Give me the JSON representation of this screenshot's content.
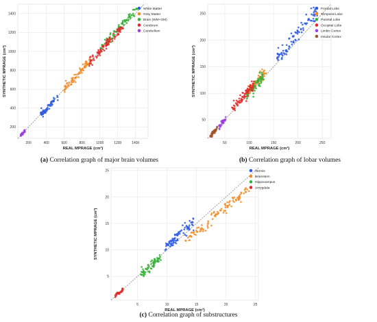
{
  "chart_data": [
    {
      "type": "scatter",
      "panel_letter": "(a)",
      "caption": "Correlation graph of major brain volumes",
      "xlabel": "REAL MPRAGE (cm³)",
      "ylabel": "SYNTHETIC MPRAGE (cm³)",
      "xlim": [
        80,
        1540
      ],
      "ylim": [
        80,
        1500
      ],
      "xticks": [
        "200",
        "400",
        "600",
        "800",
        "1000",
        "1200",
        "1400"
      ],
      "yticks": [
        "200",
        "400",
        "600",
        "800",
        "1000",
        "1200",
        "1400"
      ],
      "xtick_values": [
        200,
        400,
        600,
        800,
        1000,
        1200,
        1400
      ],
      "ytick_values": [
        200,
        400,
        600,
        800,
        1000,
        1200,
        1400
      ],
      "grid": true,
      "identity_line": true,
      "legend_position": "top-right",
      "series": [
        {
          "name": "White Matter",
          "color": "#2d5be3",
          "x_range": [
            330,
            530
          ],
          "slope": 1.0,
          "offset": -8,
          "noise": 18,
          "n": 60
        },
        {
          "name": "Grey Matter",
          "color": "#f28c28",
          "x_range": [
            600,
            900
          ],
          "slope": 1.0,
          "offset": 5,
          "noise": 22,
          "n": 80
        },
        {
          "name": "Brain (WM+GM)",
          "color": "#36b336",
          "x_range": [
            1000,
            1420
          ],
          "slope": 1.02,
          "offset": 5,
          "noise": 25,
          "n": 90
        },
        {
          "name": "Cerebrum",
          "color": "#e02b2b",
          "x_range": [
            880,
            1260
          ],
          "slope": 1.0,
          "offset": 0,
          "noise": 25,
          "n": 90
        },
        {
          "name": "Cerebellum",
          "color": "#9b3fe0",
          "x_range": [
            110,
            160
          ],
          "slope": 1.0,
          "offset": 0,
          "noise": 8,
          "n": 20
        }
      ]
    },
    {
      "type": "scatter",
      "panel_letter": "(b)",
      "caption": "Correlation graph of lobar volumes",
      "xlabel": "REAL MPRAGE (cm³)",
      "ylabel": "SYNTHETIC MPRAGE (cm³)",
      "xlim": [
        15,
        268
      ],
      "ylim": [
        15,
        268
      ],
      "xticks": [
        "50",
        "100",
        "150",
        "200",
        "250"
      ],
      "yticks": [
        "50",
        "100",
        "150",
        "200",
        "250"
      ],
      "xtick_values": [
        50,
        100,
        150,
        200,
        250
      ],
      "ytick_values": [
        50,
        100,
        150,
        200,
        250
      ],
      "grid": true,
      "identity_line": true,
      "legend_position": "top-right",
      "series": [
        {
          "name": "Frontal Lobe",
          "color": "#2d5be3",
          "x_range": [
            155,
            240
          ],
          "slope": 1.07,
          "offset": 0,
          "noise": 7,
          "n": 90
        },
        {
          "name": "Temporal Lobe",
          "color": "#f28c28",
          "x_range": [
            95,
            135
          ],
          "slope": 1.05,
          "offset": 0,
          "noise": 5,
          "n": 70
        },
        {
          "name": "Parietal Lobe",
          "color": "#36b336",
          "x_range": [
            95,
            130
          ],
          "slope": 1.03,
          "offset": 0,
          "noise": 5,
          "n": 70
        },
        {
          "name": "Occipital Lobe",
          "color": "#e02b2b",
          "x_range": [
            65,
            110
          ],
          "slope": 1.05,
          "offset": 0,
          "noise": 5,
          "n": 80
        },
        {
          "name": "Limbic Cortex",
          "color": "#9b3fe0",
          "x_range": [
            38,
            52
          ],
          "slope": 1.0,
          "offset": 0,
          "noise": 2.5,
          "n": 40
        },
        {
          "name": "Insular Cortex",
          "color": "#a0522d",
          "x_range": [
            20,
            35
          ],
          "slope": 1.0,
          "offset": 0,
          "noise": 2,
          "n": 40
        }
      ]
    },
    {
      "type": "scatter",
      "panel_letter": "(c)",
      "caption": "Correlation graph of substructures",
      "xlabel": "REAL MPRAGE (cm³)",
      "ylabel": "SYNTHETIC MPRAGE (cm³)",
      "xlim": [
        0.5,
        25.5
      ],
      "ylim": [
        0.5,
        25.5
      ],
      "xticks": [
        "5",
        "10",
        "15",
        "20",
        "25"
      ],
      "yticks": [
        "5",
        "10",
        "15",
        "20",
        "25"
      ],
      "xtick_values": [
        5,
        10,
        15,
        20,
        25
      ],
      "ytick_values": [
        5,
        10,
        15,
        20,
        25
      ],
      "grid": true,
      "identity_line": true,
      "legend_position": "top-left",
      "series": [
        {
          "name": "Vermis",
          "color": "#2d5be3",
          "x_range": [
            9.5,
            14.5
          ],
          "slope": 1.0,
          "offset": 0.6,
          "noise": 0.6,
          "n": 80
        },
        {
          "name": "Brainstem",
          "color": "#f28c28",
          "x_range": [
            13,
            24
          ],
          "slope": 0.9,
          "offset": 0,
          "noise": 0.5,
          "n": 100
        },
        {
          "name": "Hippocampus",
          "color": "#36b336",
          "x_range": [
            5.5,
            9
          ],
          "slope": 0.95,
          "offset": 0,
          "noise": 0.45,
          "n": 70
        },
        {
          "name": "Amygdala",
          "color": "#e02b2b",
          "x_range": [
            1.2,
            2.6
          ],
          "slope": 1.0,
          "offset": 0,
          "noise": 0.2,
          "n": 30
        }
      ]
    }
  ]
}
